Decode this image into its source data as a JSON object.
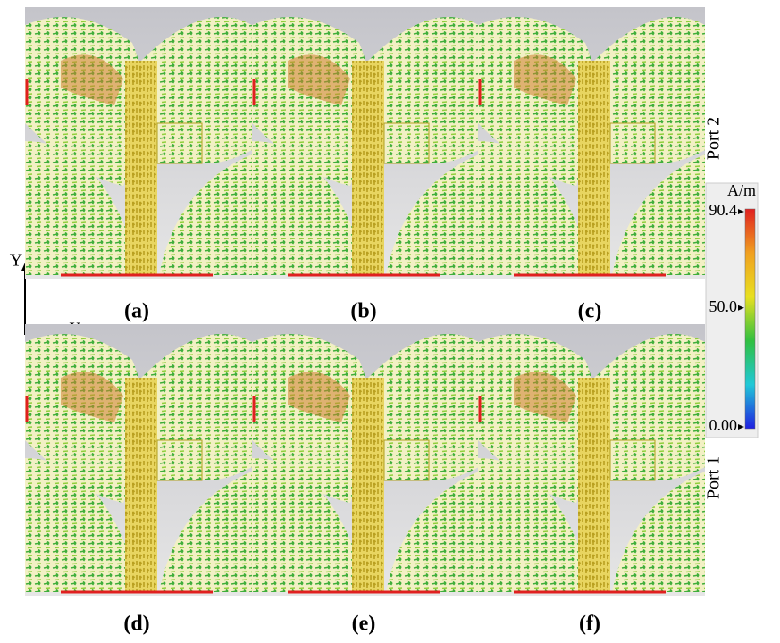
{
  "panels": [
    {
      "label": "(a)"
    },
    {
      "label": "(b)"
    },
    {
      "label": "(c)"
    },
    {
      "label": "(d)"
    },
    {
      "label": "(e)"
    },
    {
      "label": "(f)"
    }
  ],
  "ports": [
    "Port 2",
    "Port 1"
  ],
  "axes": {
    "y": "Y",
    "x": "X"
  },
  "colorbar": {
    "unit": "A/m",
    "range": [
      0,
      90.4
    ],
    "ticks": [
      90.4,
      {
        "value": 50,
        "label": "50.0"
      },
      {
        "value": 0,
        "label": "0.00"
      }
    ]
  }
}
